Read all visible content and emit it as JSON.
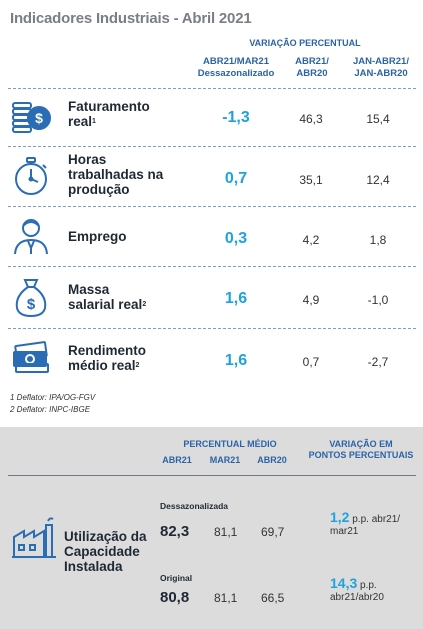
{
  "title": "Indicadores Industriais - Abril 2021",
  "header": {
    "group": "VARIAÇÃO PERCENTUAL",
    "col1_line1": "ABR21/MAR21",
    "col1_line2": "Dessazonalizado",
    "col2_line1": "ABR21/",
    "col2_line2": "ABR20",
    "col3_line1": "JAN-ABR21/",
    "col3_line2": "JAN-ABR20"
  },
  "indicators": [
    {
      "icon": "coins-icon",
      "label_lines": [
        "Faturamento",
        "real"
      ],
      "sup": "1",
      "v1": "-1,3",
      "v2": "46,3",
      "v3": "15,4"
    },
    {
      "icon": "stopwatch-icon",
      "label_lines": [
        "Horas",
        "trabalhadas na",
        "produção"
      ],
      "sup": "",
      "v1": "0,7",
      "v2": "35,1",
      "v3": "12,4"
    },
    {
      "icon": "worker-icon",
      "label_lines": [
        "Emprego"
      ],
      "sup": "",
      "v1": "0,3",
      "v2": "4,2",
      "v3": "1,8"
    },
    {
      "icon": "money-bag-icon",
      "label_lines": [
        "Massa",
        "salarial real"
      ],
      "sup": "2",
      "v1": "1,6",
      "v2": "4,9",
      "v3": "-1,0"
    },
    {
      "icon": "banknotes-icon",
      "label_lines": [
        "Rendimento",
        "médio real"
      ],
      "sup": "2",
      "v1": "1,6",
      "v2": "0,7",
      "v3": "-2,7"
    }
  ],
  "notes": [
    "1 Deflator: IPA/OG-FGV",
    "2 Deflator: INPC-IBGE"
  ],
  "capacity": {
    "head_avg": "PERCENTUAL MÉDIO",
    "head_avg_cols": [
      "ABR21",
      "MAR21",
      "ABR20"
    ],
    "head_var_line1": "VARIAÇÃO EM",
    "head_var_line2": "PONTOS PERCENTUAIS",
    "label_lines": [
      "Utilização da",
      "Capacidade",
      "Instalada"
    ],
    "icon": "factory-icon",
    "rows": [
      {
        "label": "Dessazonalizada",
        "abr21": "82,3",
        "mar21": "81,1",
        "abr20": "69,7",
        "pp_value": "1,2",
        "pp_text1": " p.p. abr21/",
        "pp_text2": "mar21"
      },
      {
        "label": "Original",
        "abr21": "80,8",
        "mar21": "81,1",
        "abr20": "66,5",
        "pp_value": "14,3",
        "pp_text1": " p.p.",
        "pp_text2": "abr21/abr20"
      }
    ]
  },
  "colors": {
    "accent": "#1fa3dc",
    "header_blue": "#2b63a6",
    "icon_blue": "#2a6db5",
    "grey_bg": "#dcdcdd"
  }
}
